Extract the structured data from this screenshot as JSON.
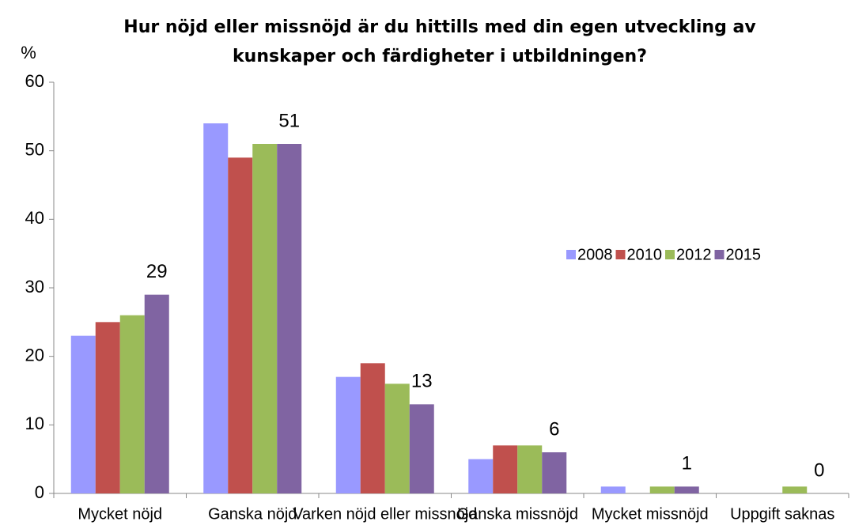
{
  "chart_data": {
    "type": "bar",
    "title": [
      "Hur nöjd eller missnöjd är du hittills med din egen utveckling av",
      "kunskaper och färdigheter i utbildningen?"
    ],
    "y_label": "%",
    "categories": [
      "Mycket nöjd",
      "Ganska nöjd",
      "Varken nöjd eller missnöjd",
      "Ganska missnöjd",
      "Mycket missnöjd",
      "Uppgift saknas"
    ],
    "series": [
      {
        "name": "2008",
        "color": "#9999ff",
        "values": [
          23,
          54,
          17,
          5,
          1,
          0
        ]
      },
      {
        "name": "2010",
        "color": "#c0504d",
        "values": [
          25,
          49,
          19,
          7,
          0,
          0
        ]
      },
      {
        "name": "2012",
        "color": "#9bbb59",
        "values": [
          26,
          51,
          16,
          7,
          1,
          1
        ]
      },
      {
        "name": "2015",
        "color": "#8064a2",
        "values": [
          29,
          51,
          13,
          6,
          1,
          0
        ],
        "data_labels": true
      }
    ],
    "ylim": [
      0,
      60
    ],
    "yticks": [
      0,
      10,
      20,
      30,
      40,
      50,
      60
    ],
    "grid": false,
    "legend": "right"
  }
}
